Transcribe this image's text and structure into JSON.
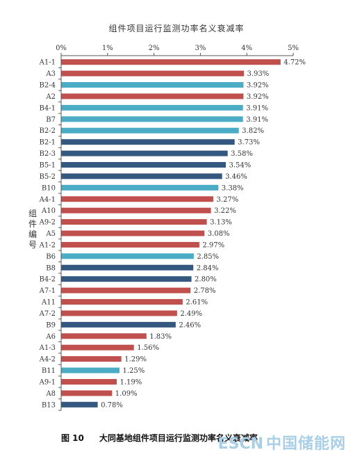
{
  "chart_data": {
    "type": "bar",
    "orientation": "horizontal",
    "title": "组件项目运行监测功率名义衰减率",
    "ylabel": "组件编号",
    "xlabel": "",
    "xlim": [
      0,
      5
    ],
    "x_ticks": [
      "0%",
      "1%",
      "2%",
      "3%",
      "4%",
      "5%"
    ],
    "grid": false,
    "colors": {
      "red": "#c0504d",
      "cyan": "#4bacc6",
      "navy": "#34587f"
    },
    "categories": [
      "A1-1",
      "A3",
      "B2-4",
      "A2",
      "B4-1",
      "B7",
      "B2-2",
      "B2-1",
      "B2-3",
      "B5-1",
      "B5-2",
      "B10",
      "A4-1",
      "A10",
      "A9-2",
      "A5",
      "A1-2",
      "B6",
      "B8",
      "B4-2",
      "A7-1",
      "A11",
      "A7-2",
      "B9",
      "A6",
      "A1-3",
      "A4-2",
      "B11",
      "A9-1",
      "A8",
      "B13"
    ],
    "values": [
      4.72,
      3.93,
      3.92,
      3.92,
      3.91,
      3.91,
      3.82,
      3.73,
      3.58,
      3.54,
      3.46,
      3.38,
      3.27,
      3.22,
      3.13,
      3.08,
      2.97,
      2.85,
      2.84,
      2.8,
      2.78,
      2.61,
      2.49,
      2.46,
      1.83,
      1.56,
      1.29,
      1.25,
      1.19,
      1.09,
      0.78
    ],
    "value_labels": [
      "4.72%",
      "3.93%",
      "3.92%",
      "3.92%",
      "3.91%",
      "3.91%",
      "3.82%",
      "3.73%",
      "3.58%",
      "3.54%",
      "3.46%",
      "3.38%",
      "3.27%",
      "3.22%",
      "3.13%",
      "3.08%",
      "2.97%",
      "2.85%",
      "2.84%",
      "2.80%",
      "2.78%",
      "2.61%",
      "2.49%",
      "2.46%",
      "1.83%",
      "1.56%",
      "1.29%",
      "1.25%",
      "1.19%",
      "1.09%",
      "0.78%"
    ],
    "bar_colors": [
      "red",
      "red",
      "cyan",
      "red",
      "cyan",
      "cyan",
      "cyan",
      "navy",
      "navy",
      "navy",
      "navy",
      "cyan",
      "red",
      "red",
      "red",
      "red",
      "red",
      "cyan",
      "navy",
      "navy",
      "red",
      "red",
      "red",
      "navy",
      "red",
      "red",
      "red",
      "cyan",
      "red",
      "red",
      "navy"
    ]
  },
  "caption": {
    "figure": "图 10",
    "text": "大同基地组件项目运行监测功率名义衰减率"
  },
  "watermark": {
    "latin": "ESCN",
    "chinese": "中国储能网"
  }
}
